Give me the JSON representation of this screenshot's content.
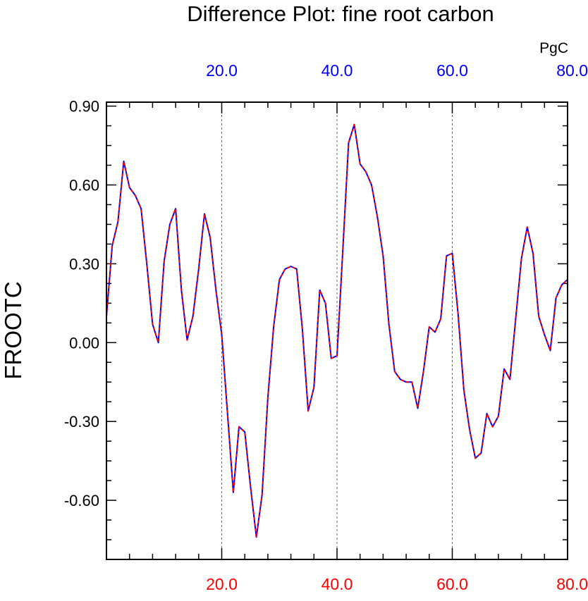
{
  "chart_data": {
    "type": "line",
    "title": "Difference Plot: fine root carbon",
    "units": "PgC",
    "ylabel": "FROOTC",
    "xlim": [
      0,
      80
    ],
    "ylim": [
      -0.825,
      0.915
    ],
    "x_ticks": [
      20,
      40,
      60,
      80
    ],
    "x_tick_labels_top": [
      "20.0",
      "40.0",
      "60.0",
      "80.0"
    ],
    "x_tick_labels_bottom": [
      "20.0",
      "40.0",
      "60.0",
      "80.0"
    ],
    "y_ticks": [
      0.9,
      0.6,
      0.3,
      0.0,
      -0.3,
      -0.6
    ],
    "y_tick_labels": [
      "0.90",
      "0.60",
      "0.30",
      "0.00",
      "-0.30",
      "-0.60"
    ],
    "grid": "vertical dotted lines at 20, 40, 60",
    "colors": {
      "top_axis_labels": "#0000ff",
      "bottom_axis_labels": "#ff0000",
      "line_under": "#0000ff",
      "line_over": "#ff0000",
      "grid": "#666666",
      "frame": "#000000"
    },
    "series": [
      {
        "x": [
          0,
          1,
          2,
          3,
          4,
          5,
          6,
          7,
          8,
          9,
          10,
          11,
          12,
          13,
          14,
          15,
          16,
          17,
          18,
          19,
          20,
          21,
          22,
          23,
          24,
          25,
          26,
          27,
          28,
          29,
          30,
          31,
          32,
          33,
          34,
          35,
          36,
          37,
          38,
          39,
          40,
          41,
          42,
          43,
          44,
          45,
          46,
          47,
          48,
          49,
          50,
          51,
          52,
          53,
          54,
          55,
          56,
          57,
          58,
          59,
          60,
          61,
          62,
          63,
          64,
          65,
          66,
          67,
          68,
          69,
          70,
          71,
          72,
          73,
          74,
          75,
          76,
          77,
          78,
          79,
          80
        ],
        "values": [
          0.1,
          0.37,
          0.46,
          0.69,
          0.59,
          0.56,
          0.51,
          0.3,
          0.07,
          0.0,
          0.31,
          0.45,
          0.51,
          0.2,
          0.01,
          0.1,
          0.28,
          0.49,
          0.4,
          0.2,
          0.03,
          -0.27,
          -0.57,
          -0.32,
          -0.34,
          -0.55,
          -0.74,
          -0.58,
          -0.21,
          0.06,
          0.24,
          0.28,
          0.29,
          0.28,
          0.05,
          -0.26,
          -0.17,
          0.2,
          0.15,
          -0.06,
          -0.05,
          0.35,
          0.76,
          0.83,
          0.68,
          0.65,
          0.6,
          0.48,
          0.33,
          0.07,
          -0.11,
          -0.14,
          -0.15,
          -0.15,
          -0.25,
          -0.11,
          0.06,
          0.04,
          0.09,
          0.33,
          0.34,
          0.11,
          -0.18,
          -0.33,
          -0.44,
          -0.42,
          -0.27,
          -0.32,
          -0.28,
          -0.1,
          -0.14,
          0.09,
          0.32,
          0.44,
          0.34,
          0.1,
          0.03,
          -0.03,
          0.17,
          0.22,
          0.24
        ]
      }
    ]
  }
}
